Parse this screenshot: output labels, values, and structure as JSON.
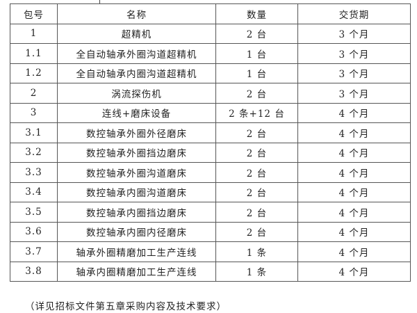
{
  "table": {
    "headers": [
      "包号",
      "名称",
      "数量",
      "交货期"
    ],
    "rows": [
      [
        "1",
        "超精机",
        "2 台",
        "3 个月"
      ],
      [
        "1.1",
        "全自动轴承外圈沟道超精机",
        "1 台",
        "3 个月"
      ],
      [
        "1.2",
        "全自动轴承内圈沟道超精机",
        "1 台",
        "3 个月"
      ],
      [
        "2",
        "涡流探伤机",
        "2 台",
        "3 个月"
      ],
      [
        "3",
        "连线+磨床设备",
        "2 条+12 台",
        "4 个月"
      ],
      [
        "3.1",
        "数控轴承外圈外径磨床",
        "2 台",
        "4 个月"
      ],
      [
        "3.2",
        "数控轴承外圈挡边磨床",
        "2 台",
        "4 个月"
      ],
      [
        "3.3",
        "数控轴承外圈沟道磨床",
        "2 台",
        "4 个月"
      ],
      [
        "3.4",
        "数控轴承内圈沟道磨床",
        "2 台",
        "4 个月"
      ],
      [
        "3.5",
        "数控轴承内圈挡边磨床",
        "2 台",
        "4 个月"
      ],
      [
        "3.6",
        "数控轴承内圈内径磨床",
        "2 台",
        "4 个月"
      ],
      [
        "3.7",
        "轴承外圈精磨加工生产连线",
        "1 条",
        "4 个月"
      ],
      [
        "3.8",
        "轴承内圈精磨加工生产连线",
        "1 条",
        "4 个月"
      ]
    ]
  },
  "note": "（详见招标文件第五章采购内容及技术要求）"
}
